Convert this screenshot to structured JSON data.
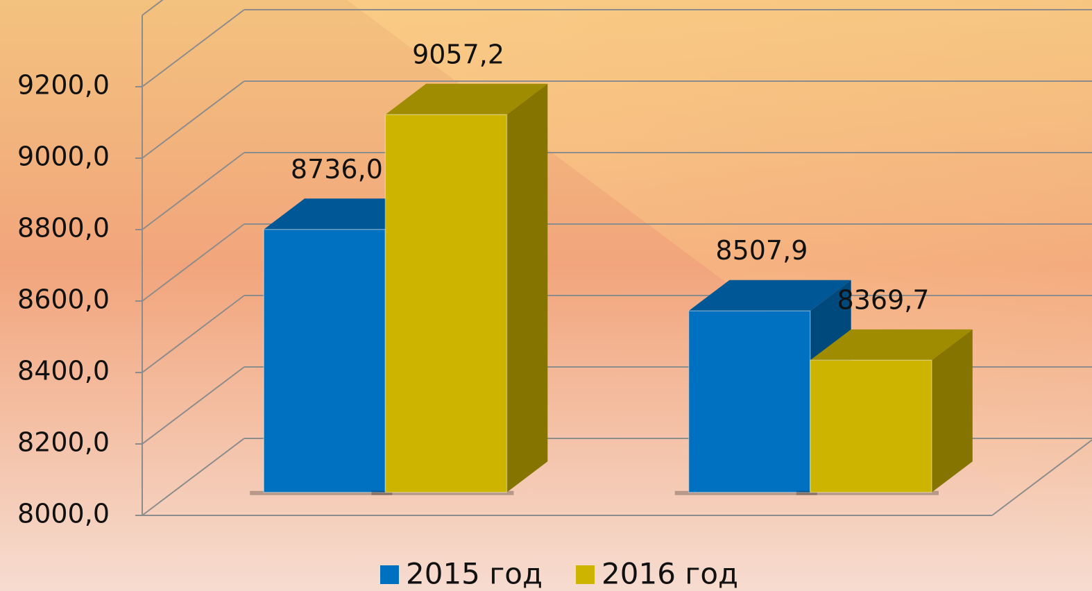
{
  "chart_data": {
    "type": "bar3d",
    "categories": [
      null,
      null
    ],
    "series": [
      {
        "name": "2015 год",
        "color": "#0070c0",
        "values": [
          8736.0,
          8507.9
        ],
        "value_labels": [
          "8736,0",
          "8507,9"
        ]
      },
      {
        "name": "2016 год",
        "color": "#ccb400",
        "values": [
          9057.2,
          8369.7
        ],
        "value_labels": [
          "9057,2",
          "8369,7"
        ]
      }
    ],
    "ylim": [
      8000,
      9400
    ],
    "yticks": [
      {
        "value": 8000,
        "label": "8000,0"
      },
      {
        "value": 8200,
        "label": "8200,0"
      },
      {
        "value": 8400,
        "label": "8400,0"
      },
      {
        "value": 8600,
        "label": "8600,0"
      },
      {
        "value": 8800,
        "label": "8800,0"
      },
      {
        "value": 9000,
        "label": "9000,0"
      },
      {
        "value": 9200,
        "label": "9200,0"
      }
    ],
    "grid": true,
    "legend": "bottom"
  }
}
